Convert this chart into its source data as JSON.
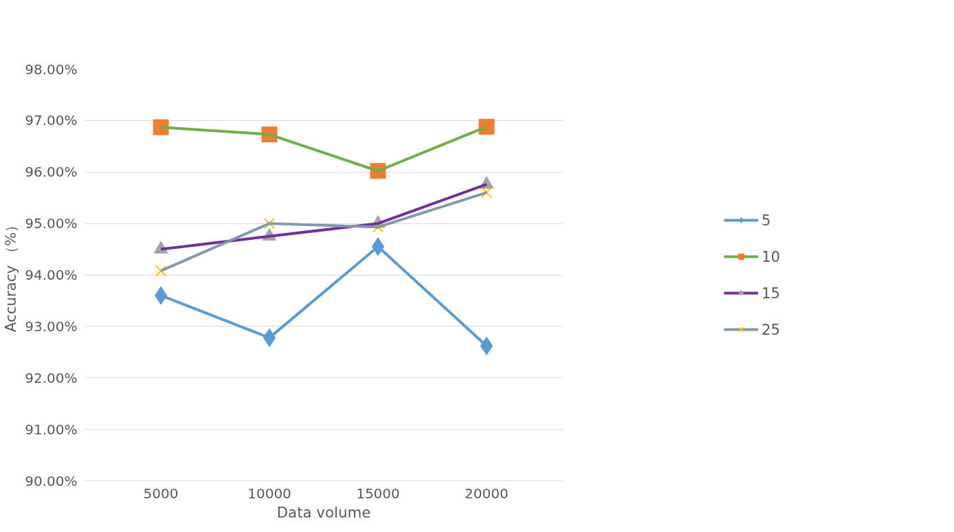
{
  "chart_data": {
    "type": "line",
    "xlabel": "Data volume",
    "ylabel": "Accuracy （%）",
    "categories": [
      "5000",
      "10000",
      "15000",
      "20000"
    ],
    "series": [
      {
        "name": "5",
        "color": "#5b9bd5",
        "colors": [
          "#5b9bd5",
          "#5b9bd5",
          "#5b9bd5",
          "#5b9bd5"
        ],
        "marker": "diamond",
        "values": [
          93.6,
          92.78,
          94.55,
          92.62
        ]
      },
      {
        "name": "10",
        "color": "#70ad47",
        "colors": [
          "#ed7d31",
          "#ed7d31",
          "#ed7d31",
          "#ed7d31"
        ],
        "marker": "square",
        "values": [
          96.87,
          96.73,
          96.02,
          96.88
        ]
      },
      {
        "name": "15",
        "color": "#7030a0",
        "colors": [
          "#a5a5a5",
          "#a5a5a5",
          "#a5a5a5",
          "#a5a5a5"
        ],
        "marker": "triangle",
        "values": [
          94.5,
          94.75,
          95.0,
          95.76
        ]
      },
      {
        "name": "25",
        "color": "#8497b0",
        "colors": [
          "#ffc000",
          "#ffc000",
          "#ffc000",
          "#ffc000"
        ],
        "marker": "cross",
        "values": [
          94.08,
          95.0,
          94.93,
          95.6
        ]
      }
    ],
    "ylim": [
      90,
      98
    ],
    "yticks": [
      {
        "value": 90,
        "label": "90.00%"
      },
      {
        "value": 91,
        "label": "91.00%"
      },
      {
        "value": 92,
        "label": "92.00%"
      },
      {
        "value": 93,
        "label": "93.00%"
      },
      {
        "value": 94,
        "label": "94.00%"
      },
      {
        "value": 95,
        "label": "95.00%"
      },
      {
        "value": 96,
        "label": "96.00%"
      },
      {
        "value": 97,
        "label": "97.00%"
      },
      {
        "value": 98,
        "label": "98.00%"
      }
    ],
    "grid": "y",
    "legend": "right",
    "line_style": "solid"
  }
}
